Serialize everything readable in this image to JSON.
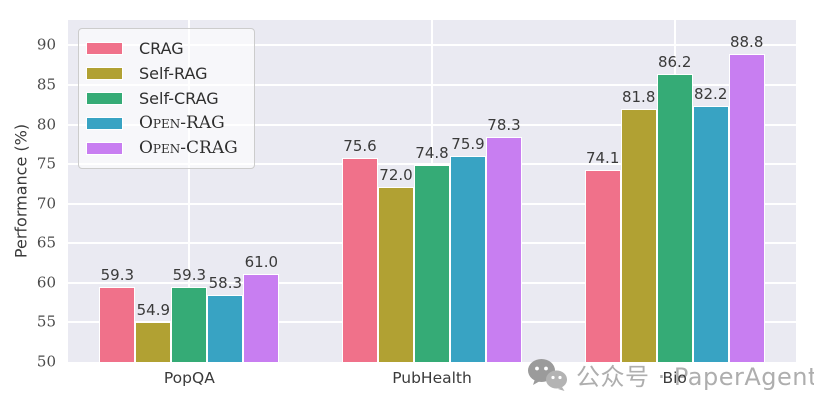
{
  "chart_data": {
    "type": "bar",
    "title": "",
    "xlabel": "",
    "ylabel": "Performance (%)",
    "categories": [
      "PopQA",
      "PubHealth",
      "Bio"
    ],
    "series": [
      {
        "name": "CRAG",
        "color": "#f0718a",
        "smallcaps": false,
        "values": [
          59.3,
          75.6,
          74.1
        ]
      },
      {
        "name": "Self-RAG",
        "color": "#b1a133",
        "smallcaps": false,
        "values": [
          54.9,
          72.0,
          81.8
        ]
      },
      {
        "name": "Self-CRAG",
        "color": "#35ab76",
        "smallcaps": false,
        "values": [
          59.3,
          74.8,
          86.2
        ]
      },
      {
        "name": "Open-RAG",
        "color": "#38a3c3",
        "smallcaps": true,
        "values": [
          58.3,
          75.9,
          82.2
        ]
      },
      {
        "name": "Open-CRAG",
        "color": "#c87ef1",
        "smallcaps": true,
        "values": [
          61.0,
          78.3,
          88.8
        ]
      }
    ],
    "ylim": [
      50,
      93.2
    ],
    "yticks": [
      50,
      55,
      60,
      65,
      70,
      75,
      80,
      85,
      90
    ],
    "value_label_decimals": 1,
    "grid": true,
    "legend_position": "upper-left",
    "colors": {
      "plot_background": "#eaeaf2",
      "figure_background": "#ffffff",
      "gridline": "#ffffff",
      "bar_edge": "#ffffff",
      "tick_label": "#4a4a4a",
      "value_label": "#3a3a3a",
      "legend_border": "#cccccc",
      "watermark": "#aeaeae"
    }
  },
  "watermark": {
    "icon": "wechat-icon",
    "text": "公众号 · PaperAgent"
  }
}
